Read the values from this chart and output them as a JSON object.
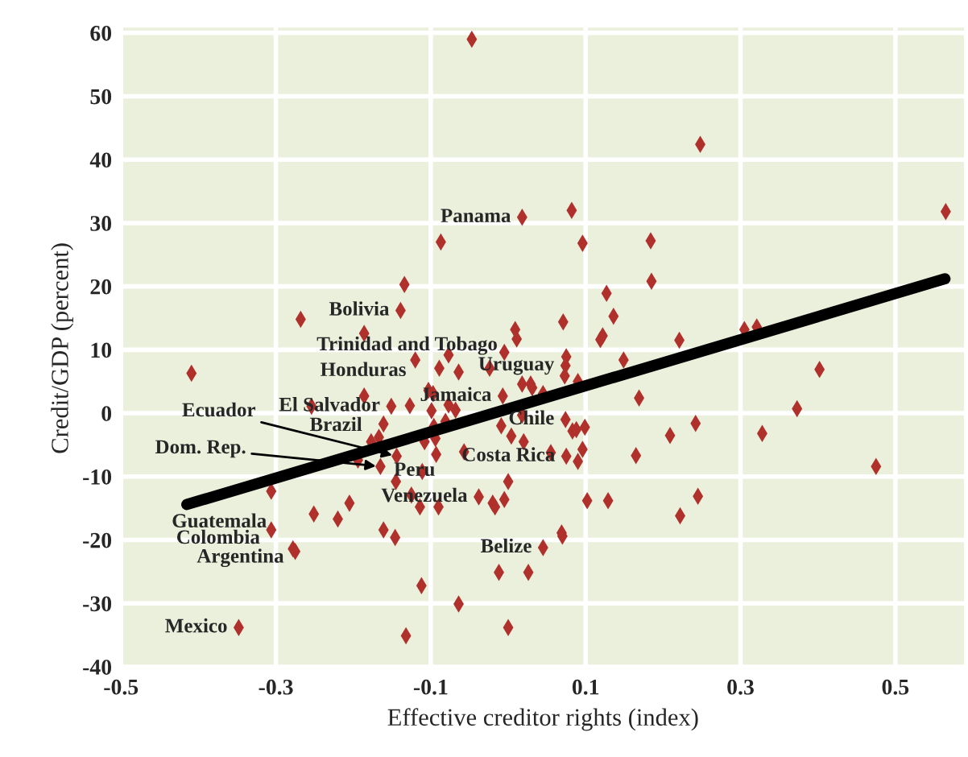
{
  "chart_data": {
    "type": "scatter",
    "xlabel": "Effective creditor rights (index)",
    "ylabel": "Credit/GDP (percent)",
    "xlim": [
      -0.5,
      0.59
    ],
    "ylim": [
      -40.5,
      61
    ],
    "xticks": [
      -0.5,
      -0.3,
      -0.1,
      0.1,
      0.3,
      0.5
    ],
    "yticks": [
      -40,
      -30,
      -20,
      -10,
      0,
      10,
      20,
      30,
      40,
      50,
      60
    ],
    "grid": true,
    "legend": false,
    "series": [
      {
        "marker": "diamond",
        "color": "#b0302c",
        "x": [
          -0.047,
          0.018,
          -0.087,
          -0.134,
          -0.139,
          -0.268,
          -0.186,
          0.009,
          0.011,
          -0.005,
          -0.077,
          -0.12,
          0.248,
          0.082,
          0.096,
          0.184,
          0.185,
          0.127,
          0.136,
          0.071,
          0.122,
          0.119,
          0.221,
          0.305,
          0.321,
          0.565,
          0.075,
          0.149,
          -0.409,
          -0.089,
          -0.064,
          -0.024,
          0.018,
          -0.103,
          -0.097,
          -0.186,
          -0.151,
          -0.127,
          -0.099,
          -0.077,
          -0.068,
          -0.007,
          -0.254,
          -0.161,
          -0.096,
          -0.081,
          -0.009,
          0.004,
          -0.177,
          -0.167,
          -0.108,
          -0.094,
          -0.057,
          -0.093,
          -0.194,
          -0.144,
          -0.165,
          -0.111,
          -0.145,
          -0.306,
          -0.205,
          -0.251,
          -0.22,
          -0.125,
          -0.114,
          -0.09,
          -0.038,
          -0.02,
          -0.017,
          -0.005,
          0.0,
          -0.306,
          -0.161,
          -0.146,
          -0.278,
          -0.275,
          -0.012,
          0.026,
          -0.112,
          -0.064,
          -0.348,
          -0.132,
          0.0,
          0.074,
          0.073,
          0.402,
          0.373,
          0.328,
          0.475,
          0.169,
          0.09,
          0.029,
          0.031,
          0.045,
          0.018,
          0.074,
          0.242,
          0.209,
          0.083,
          0.088,
          0.099,
          0.075,
          0.096,
          0.09,
          0.165,
          0.102,
          0.129,
          0.245,
          0.222,
          0.069,
          0.07,
          0.045,
          0.02,
          0.055
        ],
        "values": [
          59.0,
          30.9,
          27.0,
          20.3,
          16.2,
          14.8,
          12.6,
          13.2,
          11.7,
          9.6,
          9.2,
          8.4,
          42.4,
          32.0,
          26.8,
          27.2,
          20.8,
          18.9,
          15.3,
          14.4,
          12.2,
          11.6,
          11.5,
          13.2,
          13.6,
          31.8,
          8.9,
          8.4,
          6.3,
          7.1,
          6.5,
          7.1,
          4.6,
          3.6,
          3.1,
          2.7,
          1.1,
          1.2,
          0.4,
          1.3,
          0.5,
          2.7,
          1.1,
          -1.7,
          -2.1,
          -1.3,
          -2.0,
          -3.6,
          -4.5,
          -3.8,
          -4.5,
          -4.0,
          -6.1,
          -6.5,
          -7.4,
          -6.8,
          -8.4,
          -9.2,
          -10.8,
          -12.3,
          -14.2,
          -15.9,
          -16.7,
          -12.9,
          -14.8,
          -14.8,
          -13.2,
          -14.2,
          -14.8,
          -13.6,
          -10.8,
          -18.4,
          -18.4,
          -19.6,
          -21.4,
          -21.8,
          -25.1,
          -25.1,
          -27.2,
          -30.1,
          -33.8,
          -35.1,
          -33.8,
          7.5,
          5.9,
          6.9,
          0.7,
          -3.2,
          -8.4,
          2.4,
          5.0,
          4.6,
          4.0,
          3.1,
          -0.3,
          -1.0,
          -1.6,
          -3.5,
          -2.8,
          -2.6,
          -2.2,
          -6.8,
          -5.7,
          -7.6,
          -6.7,
          -13.8,
          -13.8,
          -13.1,
          -16.2,
          -18.9,
          -19.4,
          -21.2,
          -4.5,
          -6.2
        ]
      },
      {
        "type": "line",
        "color": "#000000",
        "x": [
          -0.415,
          0.564
        ],
        "values": [
          -14.4,
          21.2
        ]
      }
    ],
    "annotations": [
      {
        "text": "Panama",
        "x": 0.018,
        "y": 30.9
      },
      {
        "text": "Bolivia",
        "x": -0.139,
        "y": 16.2
      },
      {
        "text": "Trinidad and Tobago",
        "x": -0.005,
        "y": 9.6
      },
      {
        "text": "Honduras",
        "x": -0.12,
        "y": 8.4
      },
      {
        "text": "Uruguay",
        "x": 0.074,
        "y": 7.5
      },
      {
        "text": "Jamaica",
        "x": -0.007,
        "y": 2.7
      },
      {
        "text": "El Salvador",
        "x": -0.151,
        "y": 1.1
      },
      {
        "text": "Brazil",
        "x": -0.177,
        "y": -4.5
      },
      {
        "text": "Chile",
        "x": 0.074,
        "y": -1.0
      },
      {
        "text": "Ecuador",
        "x": -0.144,
        "y": -6.8
      },
      {
        "text": "Dom. Rep.",
        "x": -0.165,
        "y": -8.4
      },
      {
        "text": "Peru",
        "x": -0.165,
        "y": -8.4
      },
      {
        "text": "Costa Rica",
        "x": 0.075,
        "y": -6.8
      },
      {
        "text": "Venezuela",
        "x": -0.038,
        "y": -13.2
      },
      {
        "text": "Guatemala",
        "x": -0.306,
        "y": -12.3
      },
      {
        "text": "Colombia",
        "x": -0.306,
        "y": -18.4
      },
      {
        "text": "Argentina",
        "x": -0.278,
        "y": -21.4
      },
      {
        "text": "Belize",
        "x": 0.045,
        "y": -21.2
      },
      {
        "text": "Mexico",
        "x": -0.348,
        "y": -33.8
      }
    ]
  }
}
